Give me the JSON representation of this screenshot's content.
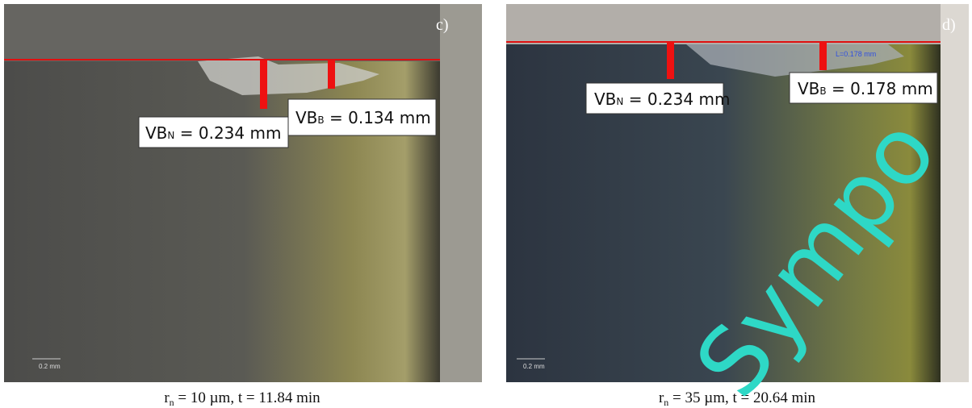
{
  "panels": [
    {
      "label": "c)",
      "scale_bar": "0.2 mm",
      "annotations": [
        {
          "symbol": "VB",
          "subscript": "N",
          "text": " = 0.234 mm"
        },
        {
          "symbol": "VB",
          "subscript": "B",
          "text": " = 0.134 mm"
        }
      ],
      "caption": {
        "symbol": "r",
        "subscript": "n",
        "text": " = 10 µm, t = 11.84 min"
      }
    },
    {
      "label": "d)",
      "scale_bar": "0.2 mm",
      "measurement": "L=0.178 mm",
      "annotations": [
        {
          "symbol": "VB",
          "subscript": "N",
          "text": " = 0.234 mm"
        },
        {
          "symbol": "VB",
          "subscript": "B",
          "text": " = 0.178 mm"
        }
      ],
      "caption": {
        "symbol": "r",
        "subscript": "n",
        "text": " = 35 µm, t = 20.64 min"
      }
    }
  ],
  "watermark": "Sympo"
}
